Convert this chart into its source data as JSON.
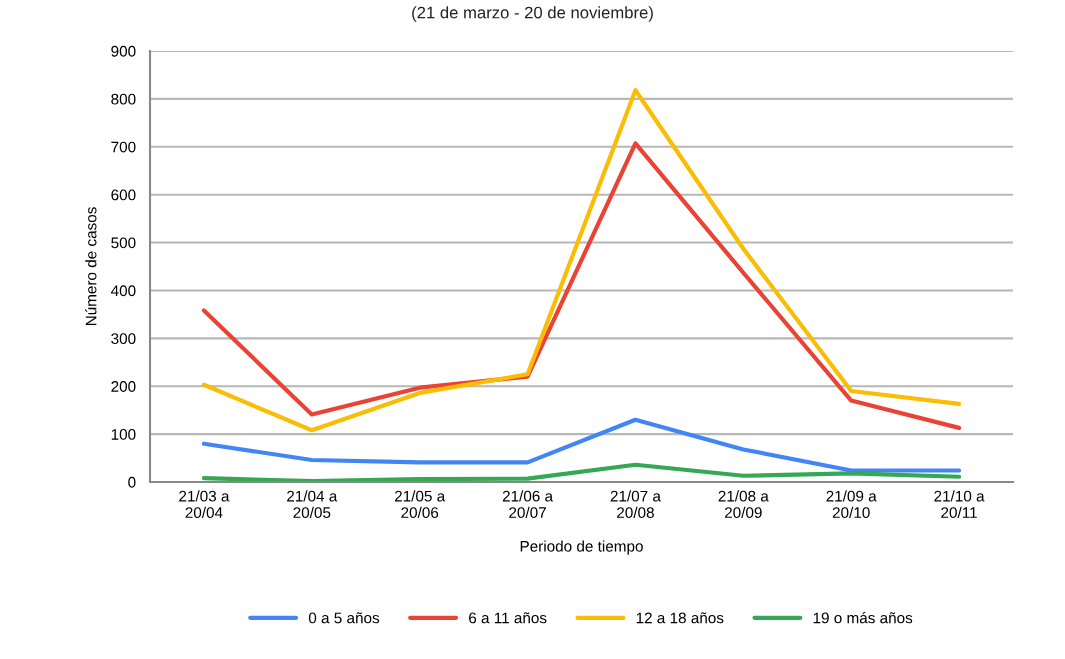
{
  "chart_data": {
    "type": "line",
    "subtitle": "(21 de marzo - 20 de noviembre)",
    "xlabel": "Periodo de tiempo",
    "ylabel": "Número de casos",
    "categories": [
      "21/03 a\n20/04",
      "21/04 a\n20/05",
      "21/05 a\n20/06",
      "21/06 a\n20/07",
      "21/07 a\n20/08",
      "21/08 a\n20/09",
      "21/09 a\n20/10",
      "21/10 a\n20/11"
    ],
    "series": [
      {
        "name": "0 a 5 años",
        "color": "#4285f4",
        "values": [
          80,
          46,
          41,
          41,
          130,
          68,
          24,
          24
        ]
      },
      {
        "name": "6 a 11 años",
        "color": "#ea4335",
        "values": [
          358,
          141,
          197,
          220,
          707,
          437,
          170,
          113
        ]
      },
      {
        "name": "12 a 18 años",
        "color": "#fbbc04",
        "values": [
          203,
          108,
          186,
          225,
          818,
          487,
          190,
          163
        ]
      },
      {
        "name": "19 o más años",
        "color": "#34a853",
        "values": [
          8,
          2,
          6,
          7,
          36,
          13,
          18,
          11
        ]
      }
    ],
    "ylim": [
      0,
      900
    ],
    "yticks": [
      0,
      100,
      200,
      300,
      400,
      500,
      600,
      700,
      800,
      900
    ],
    "grid": "y",
    "legend": "bottom",
    "line_style": "solid",
    "marker": "none"
  }
}
